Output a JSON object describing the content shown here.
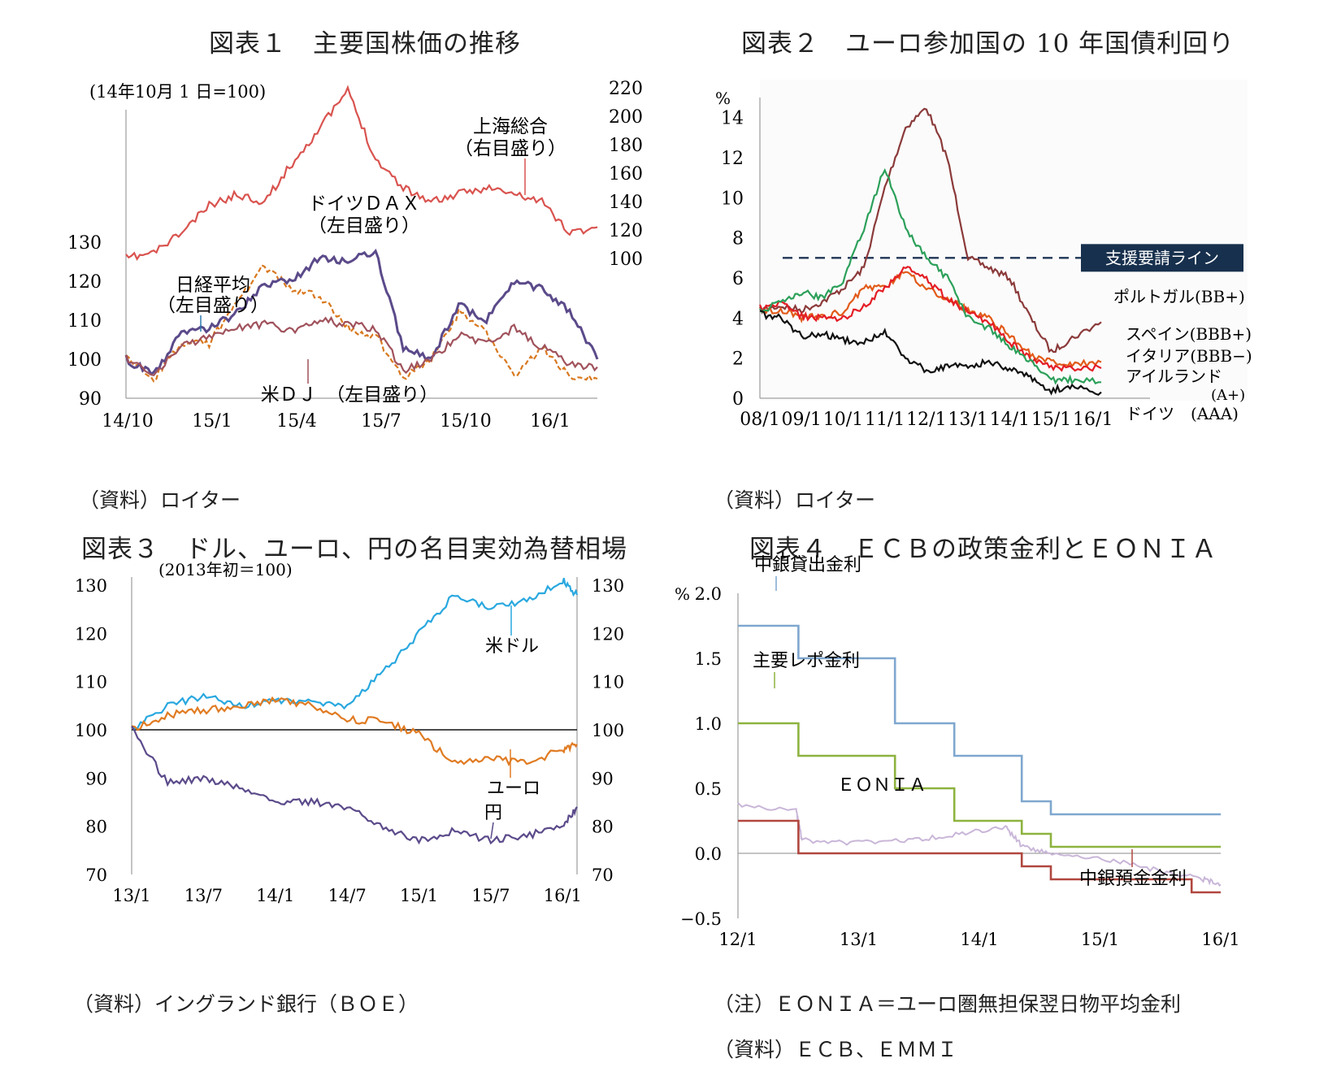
{
  "panels": {
    "p1": {
      "title": "図表１　主要国株価の推移",
      "unit": "(14年10月 1 日=100)",
      "source": "（資料）ロイター",
      "labels": {
        "shanghai": "上海総合",
        "shanghai_axis": "（右目盛り）",
        "dax": "ドイツＤＡＸ",
        "dax_axis": "（左目盛り）",
        "nikkei": "日経平均",
        "nikkei_axis": "（左目盛り）",
        "dj": "米ＤＪ　（左目盛り）"
      }
    },
    "p2": {
      "title": "図表２　ユーロ参加国の 10 年国債利回り",
      "unit": "%",
      "source": "（資料）ロイター",
      "support_line_label": "支援要請ライン",
      "labels": {
        "portugal": "ポルトガル(BB+)",
        "spain": "スペイン(BBB+)",
        "italy": "イタリア(BBB−)",
        "ireland": "アイルランド",
        "ireland_rating": "(A+)",
        "germany": "ドイツ　(AAA)"
      }
    },
    "p3": {
      "title": "図表３　ドル、ユーロ、円の名目実効為替相場",
      "unit": "(2013年初＝100)",
      "source": "（資料）イングランド銀行（ＢＯＥ）",
      "labels": {
        "usd": "米ドル",
        "eur": "ユーロ",
        "jpy": "円"
      }
    },
    "p4": {
      "title": "図表４　ＥＣＢの政策金利とＥＯＮＩＡ",
      "unit": "%",
      "note": "（注）ＥＯＮＩＡ＝ユーロ圏無担保翌日物平均金利",
      "source": "（資料）ＥＣＢ、ＥＭＭＩ",
      "labels": {
        "lending": "中銀貸出金利",
        "repo": "主要レポ金利",
        "eonia": "ＥＯＮＩＡ",
        "deposit": "中銀預金金利"
      }
    }
  },
  "chart_data": [
    {
      "type": "line",
      "title": "図表１　主要国株価の推移",
      "x_ticks": [
        "14/10",
        "15/1",
        "15/4",
        "15/7",
        "15/10",
        "16/1"
      ],
      "y_left_ticks": [
        90,
        100,
        110,
        120,
        130
      ],
      "y_right_ticks": [
        100,
        120,
        140,
        160,
        180,
        200,
        220
      ],
      "ylim_left": [
        90,
        130
      ],
      "ylim_right": [
        100,
        220
      ],
      "x": [
        0,
        1,
        2,
        3,
        4,
        5,
        6,
        7,
        8,
        9,
        10,
        11,
        12,
        13,
        14,
        15,
        16,
        17
      ],
      "series": [
        {
          "name": "上海総合",
          "axis": "right",
          "color": "#d9534f",
          "values": [
            100,
            104,
            118,
            137,
            145,
            140,
            167,
            192,
            218,
            170,
            150,
            140,
            145,
            150,
            145,
            140,
            118,
            122
          ]
        },
        {
          "name": "ドイツＤＡＸ",
          "axis": "left",
          "color": "#d9781f",
          "dash": true,
          "values": [
            100,
            95,
            104,
            104,
            115,
            124,
            118,
            116,
            108,
            106,
            95,
            100,
            112,
            107,
            96,
            103,
            96,
            95
          ]
        },
        {
          "name": "日経平均",
          "axis": "left",
          "color": "#5b4a8a",
          "values": [
            100,
            96,
            107,
            108,
            112,
            119,
            120,
            126,
            125,
            128,
            103,
            100,
            114,
            110,
            120,
            118,
            112,
            100
          ]
        },
        {
          "name": "米ＤＪ",
          "axis": "left",
          "color": "#a0525c",
          "values": [
            100,
            96,
            103,
            106,
            108,
            109,
            107,
            110,
            109,
            108,
            97,
            100,
            106,
            104,
            108,
            103,
            99,
            98
          ]
        }
      ]
    },
    {
      "type": "line",
      "title": "図表２　ユーロ参加国の 10 年国債利回り",
      "x_ticks": [
        "08/1",
        "09/1",
        "10/1",
        "11/1",
        "12/1",
        "13/1",
        "14/1",
        "15/1",
        "16/1"
      ],
      "y_ticks": [
        0,
        2,
        4,
        6,
        8,
        10,
        12,
        14
      ],
      "ylim": [
        0,
        15
      ],
      "reference_line": 7,
      "x": [
        0,
        0.5,
        1,
        1.5,
        2,
        2.5,
        3,
        3.5,
        4,
        4.5,
        5,
        5.5,
        6,
        6.5,
        7,
        7.5,
        8.2
      ],
      "series": [
        {
          "name": "ポルトガル(BB+)",
          "color": "#8b3a3a",
          "values": [
            4.4,
            4.6,
            4.4,
            4.8,
            5.5,
            6.5,
            10.5,
            13.5,
            14.5,
            12.0,
            7.0,
            6.5,
            6.0,
            4.0,
            2.3,
            3.0,
            3.8
          ]
        },
        {
          "name": "スペイン(BBB+)",
          "color": "#e25b1a",
          "values": [
            4.3,
            4.4,
            4.0,
            4.1,
            4.3,
            5.5,
            5.5,
            6.3,
            5.5,
            5.0,
            4.4,
            4.0,
            3.1,
            2.2,
            1.8,
            1.7,
            1.8
          ]
        },
        {
          "name": "イタリア(BBB−)",
          "color": "#e41e26",
          "values": [
            4.5,
            4.7,
            4.1,
            4.0,
            4.0,
            4.6,
            5.5,
            6.5,
            5.9,
            5.0,
            4.3,
            3.8,
            2.8,
            2.0,
            1.5,
            1.5,
            1.5
          ]
        },
        {
          "name": "アイルランド",
          "color": "#2ca05a",
          "values": [
            4.3,
            4.8,
            5.3,
            5.0,
            5.8,
            8.5,
            11.5,
            8.5,
            7.0,
            6.0,
            4.0,
            3.5,
            2.6,
            1.8,
            0.9,
            0.9,
            0.8
          ]
        },
        {
          "name": "ドイツ　(AAA)",
          "color": "#111111",
          "values": [
            4.2,
            4.0,
            3.1,
            3.2,
            2.9,
            2.8,
            3.3,
            2.0,
            1.4,
            1.6,
            1.6,
            1.8,
            1.5,
            1.0,
            0.4,
            0.6,
            0.3
          ]
        }
      ]
    },
    {
      "type": "line",
      "title": "図表３　ドル、ユーロ、円の名目実効為替相場",
      "x_ticks": [
        "13/1",
        "13/7",
        "14/1",
        "14/7",
        "15/1",
        "15/7",
        "16/1"
      ],
      "y_ticks": [
        70,
        80,
        90,
        100,
        110,
        120,
        130
      ],
      "ylim": [
        70,
        130
      ],
      "x": [
        0,
        0.5,
        1,
        1.5,
        2,
        2.5,
        3,
        3.5,
        4,
        4.5,
        5,
        5.5,
        6,
        6.2
      ],
      "series": [
        {
          "name": "米ドル",
          "color": "#29a8df",
          "values": [
            100,
            105,
            107,
            105,
            106,
            106,
            105,
            112,
            120,
            128,
            125,
            127,
            131,
            128
          ]
        },
        {
          "name": "ユーロ",
          "color": "#e07b22",
          "values": [
            100,
            103,
            104,
            105,
            106,
            105,
            102,
            102,
            99,
            93,
            94,
            93,
            96,
            97
          ]
        },
        {
          "name": "円",
          "color": "#5b4a8a",
          "values": [
            100,
            89,
            90,
            88,
            85,
            85,
            84,
            80,
            77,
            79,
            77,
            78,
            80,
            84
          ]
        }
      ]
    },
    {
      "type": "line",
      "title": "図表４　ＥＣＢの政策金利とＥＯＮＩＡ",
      "x_ticks": [
        "12/1",
        "13/1",
        "14/1",
        "15/1",
        "16/1"
      ],
      "y_ticks": [
        -0.5,
        0.0,
        0.5,
        1.0,
        1.5,
        2.0
      ],
      "y_tick_labels": [
        "−0.5",
        "0.0",
        "0.5",
        "1.0",
        "1.5",
        "2.0"
      ],
      "ylim": [
        -0.5,
        2.0
      ],
      "series": [
        {
          "name": "中銀貸出金利",
          "color": "#7fa7cf",
          "step": [
            [
              0,
              1.75
            ],
            [
              0.52,
              1.5
            ],
            [
              1.35,
              1.0
            ],
            [
              1.86,
              0.75
            ],
            [
              2.44,
              0.4
            ],
            [
              2.69,
              0.3
            ],
            [
              4.15,
              0.3
            ]
          ]
        },
        {
          "name": "主要レポ金利",
          "color": "#8db33f",
          "step": [
            [
              0,
              1.0
            ],
            [
              0.52,
              0.75
            ],
            [
              1.35,
              0.5
            ],
            [
              1.86,
              0.25
            ],
            [
              2.44,
              0.15
            ],
            [
              2.69,
              0.05
            ],
            [
              4.15,
              0.05
            ]
          ]
        },
        {
          "name": "ＥＯＮＩＡ",
          "color": "#c9b6d8",
          "values": [
            [
              0,
              0.37
            ],
            [
              0.5,
              0.33
            ],
            [
              0.55,
              0.1
            ],
            [
              1.0,
              0.08
            ],
            [
              1.5,
              0.1
            ],
            [
              1.9,
              0.15
            ],
            [
              2.3,
              0.2
            ],
            [
              2.45,
              0.05
            ],
            [
              2.7,
              0.0
            ],
            [
              3.2,
              -0.05
            ],
            [
              3.6,
              -0.13
            ],
            [
              4.0,
              -0.2
            ],
            [
              4.15,
              -0.24
            ]
          ]
        },
        {
          "name": "中銀預金金利",
          "color": "#b0473f",
          "step": [
            [
              0,
              0.25
            ],
            [
              0.52,
              0.0
            ],
            [
              2.44,
              -0.1
            ],
            [
              2.69,
              -0.2
            ],
            [
              3.9,
              -0.3
            ],
            [
              4.15,
              -0.3
            ]
          ]
        }
      ]
    }
  ]
}
